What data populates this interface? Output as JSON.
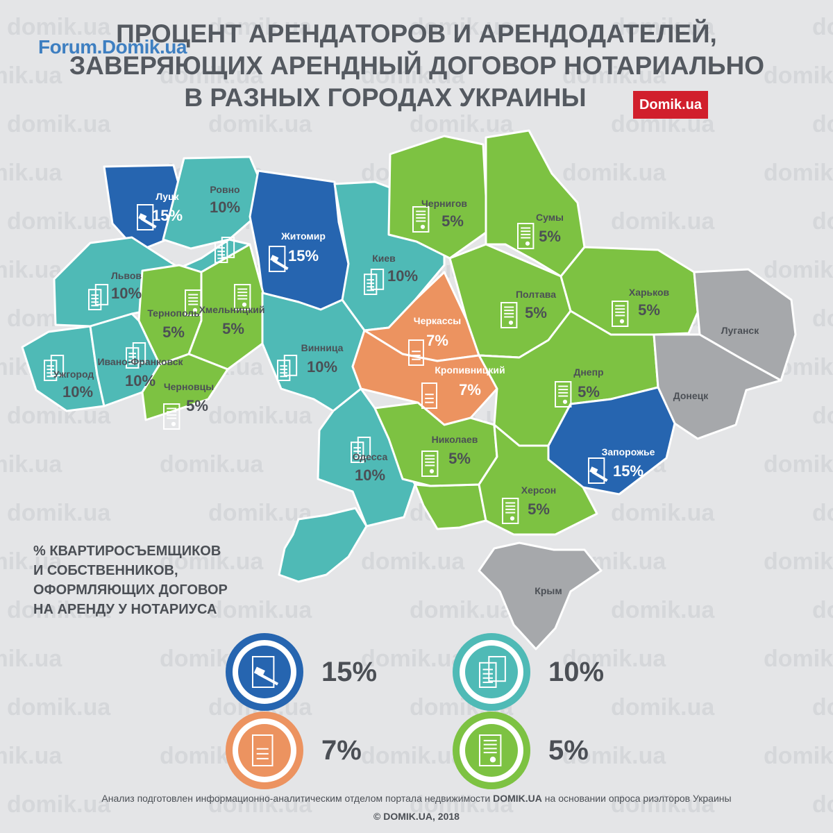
{
  "header": {
    "logo": "Forum.Domik.ua",
    "title_lines": [
      "ПРОЦЕНТ АРЕНДАТОРОВ И АРЕНДОДАТЕЛЕЙ,",
      "ЗАВЕРЯЮЩИХ АРЕНДНЫЙ ДОГОВОР НОТАРИАЛЬНО",
      "В РАЗНЫХ ГОРОДАХ УКРАИНЫ"
    ],
    "badge": "Domik.ua"
  },
  "watermark_text": "domik.ua",
  "colors": {
    "blue": "#2665b0",
    "teal": "#4fbab6",
    "orange": "#ec9360",
    "green": "#7dc242",
    "gray": "#a6a8ab"
  },
  "regions": [
    {
      "name": "Луцк",
      "value": "15%",
      "category": "15",
      "icon": "notary-gavel-icon"
    },
    {
      "name": "Ровно",
      "value": "10%",
      "category": "10",
      "icon": "document-copies-icon"
    },
    {
      "name": "Житомир",
      "value": "15%",
      "category": "15",
      "icon": "notary-gavel-icon"
    },
    {
      "name": "Киев",
      "value": "10%",
      "category": "10",
      "icon": "document-copies-icon"
    },
    {
      "name": "Чернигов",
      "value": "5%",
      "category": "5",
      "icon": "certificate-icon"
    },
    {
      "name": "Сумы",
      "value": "5%",
      "category": "5",
      "icon": "certificate-icon"
    },
    {
      "name": "Львов",
      "value": "10%",
      "category": "10",
      "icon": "document-copies-icon"
    },
    {
      "name": "Тернополь",
      "value": "5%",
      "category": "5",
      "icon": "certificate-icon"
    },
    {
      "name": "Хмельницкий",
      "value": "5%",
      "category": "5",
      "icon": "certificate-icon"
    },
    {
      "name": "Полтава",
      "value": "5%",
      "category": "5",
      "icon": "certificate-icon"
    },
    {
      "name": "Харьков",
      "value": "5%",
      "category": "5",
      "icon": "certificate-icon"
    },
    {
      "name": "Луганск",
      "value": "",
      "category": "none",
      "icon": ""
    },
    {
      "name": "Ужгород",
      "value": "10%",
      "category": "10",
      "icon": "document-copies-icon"
    },
    {
      "name": "Ивано-Франковск",
      "value": "10%",
      "category": "10",
      "icon": "document-copies-icon"
    },
    {
      "name": "Черновцы",
      "value": "5%",
      "category": "5",
      "icon": "certificate-icon"
    },
    {
      "name": "Винница",
      "value": "10%",
      "category": "10",
      "icon": "document-copies-icon"
    },
    {
      "name": "Черкассы",
      "value": "7%",
      "category": "7",
      "icon": "document-icon"
    },
    {
      "name": "Кропивницкий",
      "value": "7%",
      "category": "7",
      "icon": "document-icon"
    },
    {
      "name": "Днепр",
      "value": "5%",
      "category": "5",
      "icon": "certificate-icon"
    },
    {
      "name": "Донецк",
      "value": "",
      "category": "none",
      "icon": ""
    },
    {
      "name": "Одесса",
      "value": "10%",
      "category": "10",
      "icon": "document-copies-icon"
    },
    {
      "name": "Николаев",
      "value": "5%",
      "category": "5",
      "icon": "certificate-icon"
    },
    {
      "name": "Запорожье",
      "value": "15%",
      "category": "15",
      "icon": "notary-gavel-icon"
    },
    {
      "name": "Херсон",
      "value": "5%",
      "category": "5",
      "icon": "certificate-icon"
    },
    {
      "name": "Крым",
      "value": "",
      "category": "none",
      "icon": ""
    }
  ],
  "legend": {
    "title": "% КВАРТИРОСЪЕМЩИКОВ\nИ СОБСТВЕННИКОВ,\nОФОРМЛЯЮЩИХ ДОГОВОР\nНА АРЕНДУ У НОТАРИУСА",
    "items": [
      {
        "value": "15%",
        "color": "#2665b0",
        "icon": "notary-gavel-icon"
      },
      {
        "value": "10%",
        "color": "#4fbab6",
        "icon": "document-copies-icon"
      },
      {
        "value": "7%",
        "color": "#ec9360",
        "icon": "document-icon"
      },
      {
        "value": "5%",
        "color": "#7dc242",
        "icon": "certificate-icon"
      }
    ]
  },
  "footer": {
    "text_before": "Анализ подготовлен информационно-аналитическим отделом портала недвижимости ",
    "brand": "DOMIK.UA",
    "text_after": " на основании опроса риэлторов Украины",
    "copyright": "©  DOMIK.UA, 2018"
  }
}
